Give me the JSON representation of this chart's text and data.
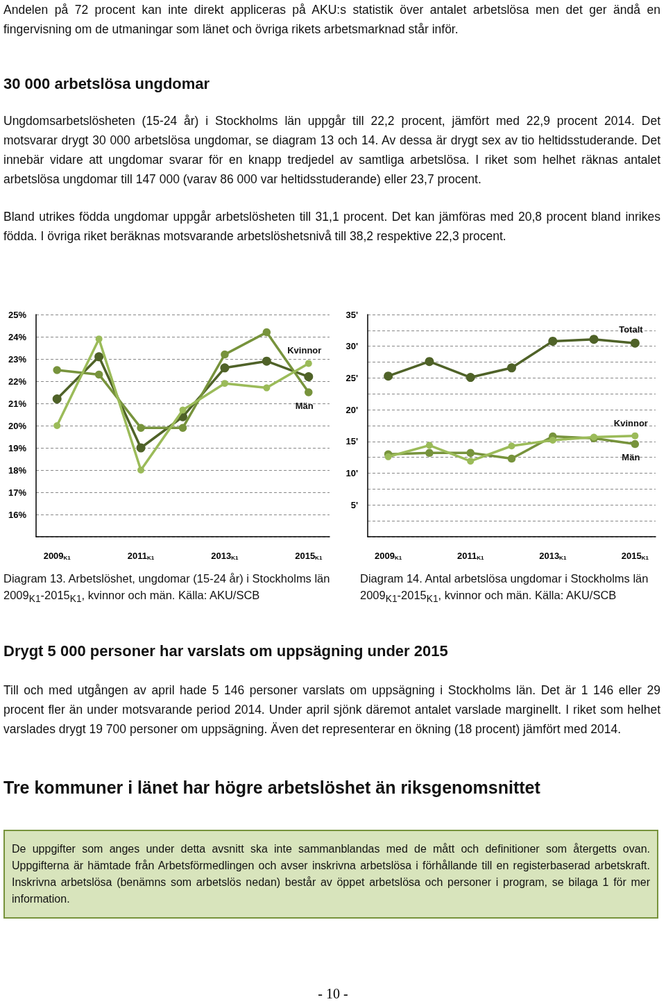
{
  "chart_data": [
    {
      "type": "line",
      "categories": [
        "2009$_{K1}$",
        null,
        "2011$_{K1}$",
        null,
        "2013$_{K1}$",
        null,
        "2015$_{K1}$"
      ],
      "series": [
        {
          "color": "#4f6228",
          "values": [
            21.2,
            23.1,
            19.0,
            20.4,
            22.6,
            22.9,
            22.2
          ]
        },
        {
          "name": "Män",
          "color": "#77933c",
          "values": [
            22.5,
            22.3,
            19.9,
            19.9,
            23.2,
            24.2,
            21.5
          ]
        },
        {
          "name": "Kvinnor",
          "color": "#9bbb59",
          "values": [
            20.0,
            23.9,
            18.0,
            20.7,
            21.9,
            21.7,
            22.8
          ]
        }
      ],
      "ylim": [
        15,
        25
      ],
      "yticks": [
        {
          "value": 16,
          "label": "16%"
        },
        {
          "value": 17,
          "label": "17%"
        },
        {
          "value": 18,
          "label": "18%"
        },
        {
          "value": 19,
          "label": "19%"
        },
        {
          "value": 20,
          "label": "20%"
        },
        {
          "value": 21,
          "label": "21%"
        },
        {
          "value": 22,
          "label": "22%"
        },
        {
          "value": 23,
          "label": "23%"
        },
        {
          "value": 24,
          "label": "24%"
        },
        {
          "value": 25,
          "label": "25%"
        }
      ],
      "grid": "y",
      "marker": "circle",
      "line_style": "solid",
      "annotations": [
        "Andelen på 72 procent kan inte direkt appliceras på AKU:s statistik över antalet arbetslösa men det ger ändå en fingervisning om de utmaningar som länet och övriga rikets arbetsmarknad står inför.",
        "30 000 arbetslösa ungdomar",
        "Ungdomsarbetslösheten (15-24 år) i Stockholms län uppgår till 22,2 procent, jämfört med 22,9 procent 2014. Det motsvarar drygt 30 000 arbetslösa ungdomar, se diagram 13 och 14. Av dessa är drygt sex av tio heltidsstuderande. Det innebär vidare att ungdomar svarar för en knapp tredjedel av samtliga arbetslösa. I riket som helhet räknas antalet arbetslösa ungdomar till 147 000 (varav 86 000 var heltidsstuderande) eller 23,7 procent.",
        "Bland utrikes födda ungdomar uppgår arbetslösheten till 31,1 procent. Det kan jämföras med 20,8 procent bland inrikes födda. I övriga riket beräknas motsvarande arbetslöshetsnivå till 38,2 respektive 22,3 procent.",
        "Diagram 13. Arbetslöshet, ungdomar (15-24 år) i Stockholms län 2009$_{K1}$-2015$_{K1}$, kvinnor och män. Källa: AKU/SCB"
      ]
    },
    {
      "type": "line",
      "categories": [
        "2009$_{K1}$",
        null,
        "2011$_{K1}$",
        null,
        "2013$_{K1}$",
        null,
        "2015$_{K1}$"
      ],
      "series": [
        {
          "name": "Totalt",
          "color": "#4f6228",
          "values": [
            25.3,
            27.6,
            25.1,
            26.6,
            30.8,
            31.1,
            30.5
          ]
        },
        {
          "name": "Män",
          "color": "#77933c",
          "values": [
            13.0,
            13.2,
            13.2,
            12.3,
            15.8,
            15.5,
            14.6
          ]
        },
        {
          "name": "Kvinnor",
          "color": "#9bbb59",
          "values": [
            12.6,
            14.4,
            11.9,
            14.3,
            15.2,
            15.7,
            15.9
          ]
        }
      ],
      "ylim": [
        0,
        35
      ],
      "yticks": [
        {
          "value": 2.5,
          "label": null
        },
        {
          "value": 5,
          "label": "5'"
        },
        {
          "value": 7.5,
          "label": null
        },
        {
          "value": 10,
          "label": "10'"
        },
        {
          "value": 12.5,
          "label": null
        },
        {
          "value": 15,
          "label": "15'"
        },
        {
          "value": 17.5,
          "label": null
        },
        {
          "value": 20,
          "label": "20'"
        },
        {
          "value": 22.5,
          "label": null
        },
        {
          "value": 25,
          "label": "25'"
        },
        {
          "value": 27.5,
          "label": null
        },
        {
          "value": 30,
          "label": "30'"
        },
        {
          "value": 32.5,
          "label": null
        },
        {
          "value": 35,
          "label": "35'"
        }
      ],
      "grid": "y",
      "marker": "circle",
      "line_style": "solid",
      "annotations": [
        "Diagram 14. Antal arbetslösa ungdomar i Stockholms län 2009$_{K1}$-2015$_{K1}$, kvinnor och män. Källa: AKU/SCB",
        "Drygt 5 000 personer har varslats om uppsägning under 2015",
        "Till och med utgången av april hade 5 146 personer varslats om uppsägning i Stockholms län. Det är 1 146 eller 29 procent fler än under motsvarande period 2014. Under april sjönk däremot antalet varslade marginellt. I riket som helhet varslades drygt 19 700 personer om uppsägning. Även det representerar en ökning (18 procent) jämfört med 2014.",
        "Tre kommuner i länet har högre arbetslöshet än riksgenomsnittet",
        "De uppgifter som anges under detta avsnitt ska inte sammanblandas med de mått och definitioner som återgetts ovan. Uppgifterna är hämtade från Arbetsförmedlingen och avser inskrivna arbetslösa i förhållande till en registerbaserad arbetskraft. Inskrivna arbetslösa (benämns som arbetslös nedan) består av öppet arbetslösa och personer i program, se bilaga 1 för mer information.",
        "- 10 -"
      ]
    }
  ]
}
